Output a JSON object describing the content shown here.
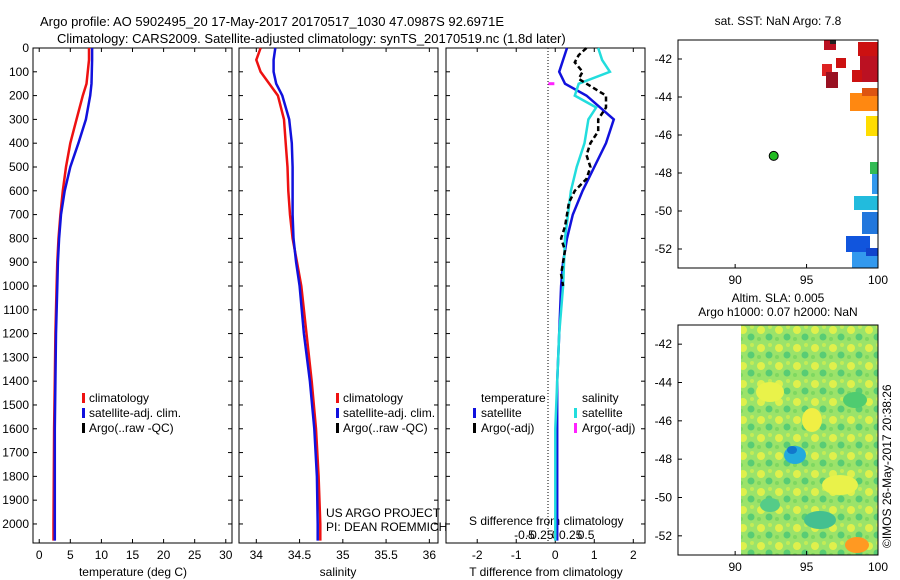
{
  "header": {
    "line1": "Argo profile: AO 5902495_20 17-May-2017 20170517_1030 47.0987S 92.6971E",
    "line2": "Climatology: CARS2009. Satellite-adjusted climatology: synTS_20170519.nc (1.8d later)"
  },
  "colors": {
    "climatology": "#ee1111",
    "satellite": "#1111dd",
    "argo": "#000000",
    "argo_salinity_diff": "#ff22ff",
    "satellite_salinity_diff": "#22dddd"
  },
  "chart_data": [
    {
      "type": "line",
      "panel": "temperature",
      "xlabel": "temperature (deg C)",
      "ylabel": "",
      "xlim": [
        -1,
        31
      ],
      "ylim": [
        2080,
        0
      ],
      "xticks": [
        0,
        5,
        10,
        15,
        20,
        25,
        30
      ],
      "yticks": [
        0,
        100,
        200,
        300,
        400,
        500,
        600,
        700,
        800,
        900,
        1000,
        1100,
        1200,
        1300,
        1400,
        1500,
        1600,
        1700,
        1800,
        1900,
        2000
      ],
      "legend": [
        "climatology",
        "satellite-adj. clim.",
        "Argo(..raw -QC)"
      ],
      "series": [
        {
          "name": "climatology",
          "depth": [
            0,
            50,
            150,
            200,
            300,
            400,
            500,
            600,
            700,
            800,
            900,
            1000,
            1200,
            1400,
            1600,
            1800,
            2000,
            2070
          ],
          "values": [
            8.0,
            8.0,
            7.6,
            7.0,
            6.0,
            5.0,
            4.3,
            3.8,
            3.4,
            3.1,
            2.9,
            2.8,
            2.6,
            2.5,
            2.4,
            2.35,
            2.3,
            2.3
          ]
        },
        {
          "name": "satellite-adj. clim.",
          "depth": [
            0,
            50,
            150,
            200,
            300,
            400,
            500,
            600,
            700,
            800,
            900,
            1000,
            1200,
            1400,
            1600,
            1800,
            2000,
            2070
          ],
          "values": [
            8.5,
            8.5,
            8.4,
            8.2,
            7.5,
            6.3,
            5.0,
            4.1,
            3.5,
            3.2,
            3.0,
            2.9,
            2.7,
            2.6,
            2.5,
            2.5,
            2.5,
            2.5
          ]
        }
      ]
    },
    {
      "type": "line",
      "panel": "salinity",
      "xlabel": "salinity",
      "ylabel": "",
      "xlim": [
        33.8,
        36.1
      ],
      "ylim": [
        2080,
        0
      ],
      "xticks": [
        34,
        34.5,
        35,
        35.5,
        36
      ],
      "legend": [
        "climatology",
        "satellite-adj. clim.",
        "Argo(..raw -QC)"
      ],
      "series": [
        {
          "name": "climatology",
          "depth": [
            0,
            50,
            100,
            150,
            200,
            300,
            400,
            500,
            600,
            700,
            800,
            900,
            1000,
            1200,
            1400,
            1600,
            1800,
            2000,
            2070
          ],
          "values": [
            34.05,
            34.0,
            34.05,
            34.15,
            34.25,
            34.32,
            34.34,
            34.36,
            34.37,
            34.39,
            34.42,
            34.47,
            34.52,
            34.58,
            34.64,
            34.69,
            34.72,
            34.74,
            34.74
          ]
        },
        {
          "name": "satellite-adj. clim.",
          "depth": [
            0,
            50,
            100,
            150,
            200,
            300,
            400,
            500,
            600,
            700,
            800,
            900,
            1000,
            1200,
            1400,
            1600,
            1800,
            2000,
            2070
          ],
          "values": [
            34.22,
            34.2,
            34.2,
            34.23,
            34.3,
            34.38,
            34.41,
            34.42,
            34.42,
            34.42,
            34.43,
            34.46,
            34.5,
            34.55,
            34.62,
            34.67,
            34.7,
            34.71,
            34.71
          ]
        }
      ]
    },
    {
      "type": "line",
      "panel": "difference",
      "xlabel": "T difference from climatology",
      "xlabel_top": "S difference from climatology",
      "xlim": [
        -2.8,
        2.3
      ],
      "ylim": [
        2080,
        0
      ],
      "xticks": [
        -2,
        -1,
        0,
        1,
        2
      ],
      "xticks_s": [
        -0.5,
        -0.25,
        0,
        0.25,
        0.5
      ],
      "legend_titles": [
        "temperature",
        "salinity"
      ],
      "legend": [
        "satellite",
        "Argo(-adj)",
        "satellite",
        "Argo(-adj)"
      ],
      "series": [
        {
          "name": "satellite",
          "quantity": "temperature",
          "depth": [
            0,
            50,
            100,
            150,
            200,
            300,
            400,
            500,
            600,
            700,
            800,
            900,
            1000,
            1200,
            1400,
            1600,
            1800,
            2000,
            2070
          ],
          "values": [
            0.3,
            0.2,
            0.1,
            0.25,
            0.8,
            1.5,
            1.3,
            1.0,
            0.7,
            0.45,
            0.3,
            0.2,
            0.15,
            0.1,
            0.05,
            0.05,
            0.05,
            0.05,
            0.05
          ]
        },
        {
          "name": "satellite",
          "quantity": "salinity",
          "depth": [
            0,
            50,
            100,
            150,
            200,
            250,
            300,
            400,
            500,
            600,
            800,
            1000,
            1200,
            1400,
            1600,
            1800,
            2000,
            2070
          ],
          "values": [
            1.1,
            1.2,
            1.4,
            0.6,
            0.5,
            1.05,
            0.85,
            0.75,
            0.55,
            0.4,
            0.25,
            0.2,
            0.1,
            0.05,
            0.0,
            0.0,
            0.0,
            0.0
          ]
        },
        {
          "name": "Argo(-adj)",
          "quantity": "temperature",
          "depth": [
            0,
            30,
            60,
            100,
            130,
            160,
            200,
            250,
            300,
            350,
            400,
            450,
            500,
            550,
            600,
            650,
            700,
            750,
            800,
            850,
            900,
            950,
            1000
          ],
          "values": [
            0.8,
            0.6,
            0.5,
            0.7,
            0.6,
            0.9,
            1.3,
            1.3,
            1.1,
            1.1,
            0.9,
            0.8,
            0.9,
            0.8,
            0.5,
            0.35,
            0.3,
            0.25,
            0.15,
            0.25,
            0.2,
            0.15,
            0.2
          ]
        },
        {
          "name": "Argo(-adj)",
          "quantity": "salinity",
          "depth": [
            150
          ],
          "values": [
            -0.1
          ]
        }
      ]
    },
    {
      "type": "heatmap",
      "panel": "sst_map",
      "title": "sat. SST: NaN Argo: 7.8",
      "xlim": [
        86,
        100
      ],
      "ylim": [
        -53,
        -41
      ],
      "xticks": [
        90,
        95,
        100
      ],
      "yticks": [
        -42,
        -44,
        -46,
        -48,
        -50,
        -52
      ],
      "marker": {
        "lon": 92.7,
        "lat": -47.1
      }
    },
    {
      "type": "heatmap",
      "panel": "sla_map",
      "title": "Altim. SLA: 0.005",
      "subtitle": "Argo h1000: 0.07 h2000: NaN",
      "xlim": [
        86,
        100
      ],
      "ylim": [
        -53,
        -41
      ],
      "xticks": [
        90,
        95,
        100
      ],
      "yticks": [
        -42,
        -44,
        -46,
        -48,
        -50,
        -52
      ]
    }
  ],
  "credit": {
    "line1": "US ARGO PROJECT",
    "line2": "PI: DEAN ROEMMICH",
    "stamp": "©IMOS 26-May-2017 20:38:26"
  }
}
